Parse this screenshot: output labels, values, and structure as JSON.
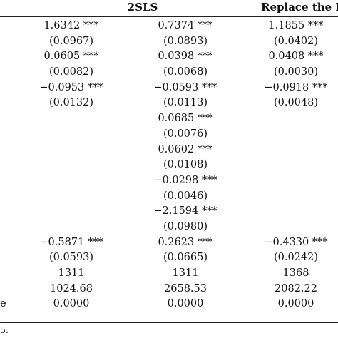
{
  "header": {
    "col_2sls": "2SLS",
    "col_replace": "Replace the E"
  },
  "rows": [
    {
      "label": "",
      "c1": "1.6342 ***",
      "c2": "0.7374 ***",
      "c3": "1.1855 ***"
    },
    {
      "label": "",
      "c1": "(0.0967)",
      "c2": "(0.0893)",
      "c3": "(0.0402)"
    },
    {
      "label": "",
      "c1": "0.0605 ***",
      "c2": "0.0398 ***",
      "c3": "0.0408 ***"
    },
    {
      "label": "",
      "c1": "(0.0082)",
      "c2": "(0.0068)",
      "c3": "(0.0030)"
    },
    {
      "label": "",
      "c1": "−0.0953 ***",
      "c2": "−0.0593 ***",
      "c3": "−0.0918 ***"
    },
    {
      "label": "",
      "c1": "(0.0132)",
      "c2": "(0.0113)",
      "c3": "(0.0048)"
    },
    {
      "label": "",
      "c1": "",
      "c2": "0.0685 ***",
      "c3": ""
    },
    {
      "label": "",
      "c1": "",
      "c2": "(0.0076)",
      "c3": ""
    },
    {
      "label": "",
      "c1": "",
      "c2": "0.0602 ***",
      "c3": ""
    },
    {
      "label": "",
      "c1": "",
      "c2": "(0.0108)",
      "c3": ""
    },
    {
      "label": "",
      "c1": "",
      "c2": "−0.0298 ***",
      "c3": ""
    },
    {
      "label": "",
      "c1": "",
      "c2": "(0.0046)",
      "c3": ""
    },
    {
      "label": "",
      "c1": "",
      "c2": "−2.1594 ***",
      "c3": ""
    },
    {
      "label": "",
      "c1": "",
      "c2": "(0.0980)",
      "c3": ""
    },
    {
      "label": "",
      "c1": "−0.5871 ***",
      "c2": "0.2623 ***",
      "c3": "−0.4330 ***"
    },
    {
      "label": "",
      "c1": "(0.0593)",
      "c2": "(0.0665)",
      "c3": "(0.0242)"
    },
    {
      "label": "",
      "c1": "1311",
      "c2": "1311",
      "c3": "1368"
    },
    {
      "label": "",
      "c1": "1024.68",
      "c2": "2658.53",
      "c3": "2082.22"
    },
    {
      "label": "e",
      "c1": "0.0000",
      "c2": "0.0000",
      "c3": "0.0000"
    }
  ],
  "note": "5."
}
